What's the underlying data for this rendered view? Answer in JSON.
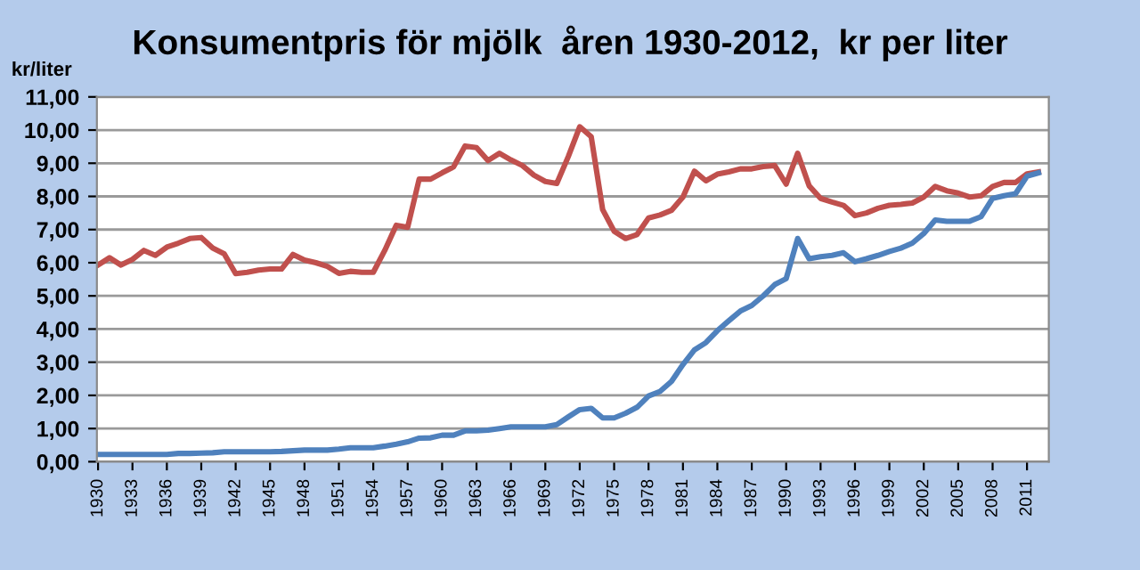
{
  "chart_data": {
    "type": "line",
    "title": "Konsumentpris för mjölk  åren 1930-2012,  kr per liter",
    "ylabel": "kr/liter",
    "x": [
      1930,
      1931,
      1932,
      1933,
      1934,
      1935,
      1936,
      1937,
      1938,
      1939,
      1940,
      1941,
      1942,
      1943,
      1944,
      1945,
      1946,
      1947,
      1948,
      1949,
      1950,
      1951,
      1952,
      1953,
      1954,
      1955,
      1956,
      1957,
      1958,
      1959,
      1960,
      1961,
      1962,
      1963,
      1964,
      1965,
      1966,
      1967,
      1968,
      1969,
      1970,
      1971,
      1972,
      1973,
      1974,
      1975,
      1976,
      1977,
      1978,
      1979,
      1980,
      1981,
      1982,
      1983,
      1984,
      1985,
      1986,
      1987,
      1988,
      1989,
      1990,
      1991,
      1992,
      1993,
      1994,
      1995,
      1996,
      1997,
      1998,
      1999,
      2000,
      2001,
      2002,
      2003,
      2004,
      2005,
      2006,
      2007,
      2008,
      2009,
      2010,
      2011,
      2012
    ],
    "series": [
      {
        "color": "#c0504d",
        "values": [
          5.93,
          6.15,
          5.93,
          6.1,
          6.37,
          6.22,
          6.47,
          6.59,
          6.73,
          6.76,
          6.44,
          6.27,
          5.67,
          5.71,
          5.78,
          5.81,
          5.81,
          6.25,
          6.08,
          6.0,
          5.89,
          5.68,
          5.74,
          5.71,
          5.71,
          6.37,
          7.13,
          7.07,
          8.52,
          8.52,
          8.71,
          8.89,
          9.52,
          9.47,
          9.08,
          9.3,
          9.1,
          8.93,
          8.64,
          8.45,
          8.39,
          9.2,
          10.1,
          9.8,
          7.6,
          6.95,
          6.73,
          6.85,
          7.35,
          7.44,
          7.58,
          7.98,
          8.76,
          8.47,
          8.67,
          8.74,
          8.83,
          8.83,
          8.9,
          8.93,
          8.37,
          9.3,
          8.32,
          7.94,
          7.83,
          7.73,
          7.42,
          7.5,
          7.64,
          7.73,
          7.76,
          7.8,
          7.98,
          8.3,
          8.17,
          8.1,
          7.98,
          8.02,
          8.3,
          8.42,
          8.42,
          8.68,
          8.74
        ]
      },
      {
        "color": "#4f81bd",
        "values": [
          0.22,
          0.22,
          0.22,
          0.22,
          0.22,
          0.22,
          0.22,
          0.25,
          0.25,
          0.26,
          0.27,
          0.3,
          0.3,
          0.3,
          0.3,
          0.3,
          0.31,
          0.33,
          0.35,
          0.35,
          0.35,
          0.38,
          0.42,
          0.42,
          0.42,
          0.47,
          0.53,
          0.6,
          0.71,
          0.72,
          0.8,
          0.8,
          0.93,
          0.93,
          0.95,
          1.0,
          1.05,
          1.05,
          1.05,
          1.05,
          1.12,
          1.35,
          1.57,
          1.61,
          1.32,
          1.32,
          1.46,
          1.64,
          1.98,
          2.12,
          2.42,
          2.93,
          3.37,
          3.59,
          3.95,
          4.25,
          4.54,
          4.71,
          5.0,
          5.34,
          5.52,
          6.73,
          6.12,
          6.18,
          6.22,
          6.3,
          6.03,
          6.12,
          6.22,
          6.34,
          6.44,
          6.59,
          6.88,
          7.29,
          7.25,
          7.25,
          7.25,
          7.39,
          7.94,
          8.02,
          8.08,
          8.61,
          8.71
        ]
      }
    ],
    "xlim": [
      1929.9,
      2012.9
    ],
    "xticks": [
      1930,
      1933,
      1936,
      1939,
      1942,
      1945,
      1948,
      1951,
      1954,
      1957,
      1960,
      1963,
      1966,
      1969,
      1972,
      1975,
      1978,
      1981,
      1984,
      1987,
      1990,
      1993,
      1996,
      1999,
      2002,
      2005,
      2008,
      2011
    ],
    "ylim": [
      0,
      11
    ],
    "yticks": [
      {
        "value": 0,
        "label": "0,00"
      },
      {
        "value": 1,
        "label": "1,00"
      },
      {
        "value": 2,
        "label": "2,00"
      },
      {
        "value": 3,
        "label": "3,00"
      },
      {
        "value": 4,
        "label": "4,00"
      },
      {
        "value": 5,
        "label": "5,00"
      },
      {
        "value": 6,
        "label": "6,00"
      },
      {
        "value": 7,
        "label": "7,00"
      },
      {
        "value": 8,
        "label": "8,00"
      },
      {
        "value": 9,
        "label": "9,00"
      },
      {
        "value": 10,
        "label": "10,00"
      },
      {
        "value": 11,
        "label": "11,00"
      }
    ],
    "grid": "y",
    "legend": false,
    "marker": "none",
    "line_style": "solid"
  }
}
